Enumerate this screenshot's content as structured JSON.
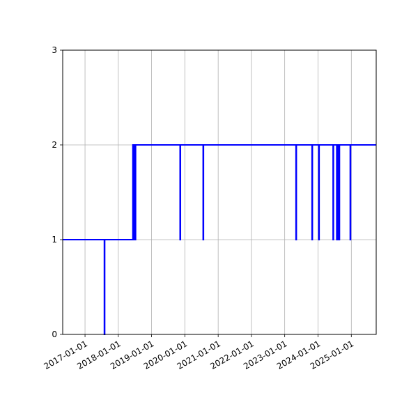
{
  "chart_data": {
    "type": "line",
    "title": "",
    "xlabel": "",
    "ylabel": "",
    "x_is_date": true,
    "xlim": [
      "2016-05-01",
      "2025-10-01"
    ],
    "ylim": [
      0,
      3
    ],
    "grid": true,
    "x_ticks": [
      "2017-01-01",
      "2018-01-01",
      "2019-01-01",
      "2020-01-01",
      "2021-01-01",
      "2022-01-01",
      "2023-01-01",
      "2024-01-01",
      "2025-01-01"
    ],
    "y_ticks": [
      0,
      1,
      2,
      3
    ],
    "series": [
      {
        "color": "#0000ff",
        "drawstyle": "steps-post",
        "points": [
          [
            "2016-05-01",
            1
          ],
          [
            "2017-08-01",
            0
          ],
          [
            "2017-08-05",
            1
          ],
          [
            "2018-06-10",
            2
          ],
          [
            "2018-06-14",
            1
          ],
          [
            "2018-06-20",
            2
          ],
          [
            "2018-06-24",
            1
          ],
          [
            "2018-07-01",
            2
          ],
          [
            "2018-07-05",
            1
          ],
          [
            "2018-07-10",
            2
          ],
          [
            "2019-11-10",
            1
          ],
          [
            "2019-11-14",
            2
          ],
          [
            "2020-07-20",
            1
          ],
          [
            "2020-07-24",
            2
          ],
          [
            "2023-05-05",
            1
          ],
          [
            "2023-05-09",
            2
          ],
          [
            "2023-10-28",
            1
          ],
          [
            "2023-11-01",
            2
          ],
          [
            "2024-01-10",
            1
          ],
          [
            "2024-01-14",
            2
          ],
          [
            "2024-06-15",
            1
          ],
          [
            "2024-06-19",
            2
          ],
          [
            "2024-07-25",
            1
          ],
          [
            "2024-07-29",
            2
          ],
          [
            "2024-08-10",
            1
          ],
          [
            "2024-08-14",
            2
          ],
          [
            "2024-08-20",
            1
          ],
          [
            "2024-08-24",
            2
          ],
          [
            "2024-12-20",
            1
          ],
          [
            "2024-12-24",
            2
          ],
          [
            "2025-10-01",
            2
          ]
        ]
      }
    ]
  }
}
